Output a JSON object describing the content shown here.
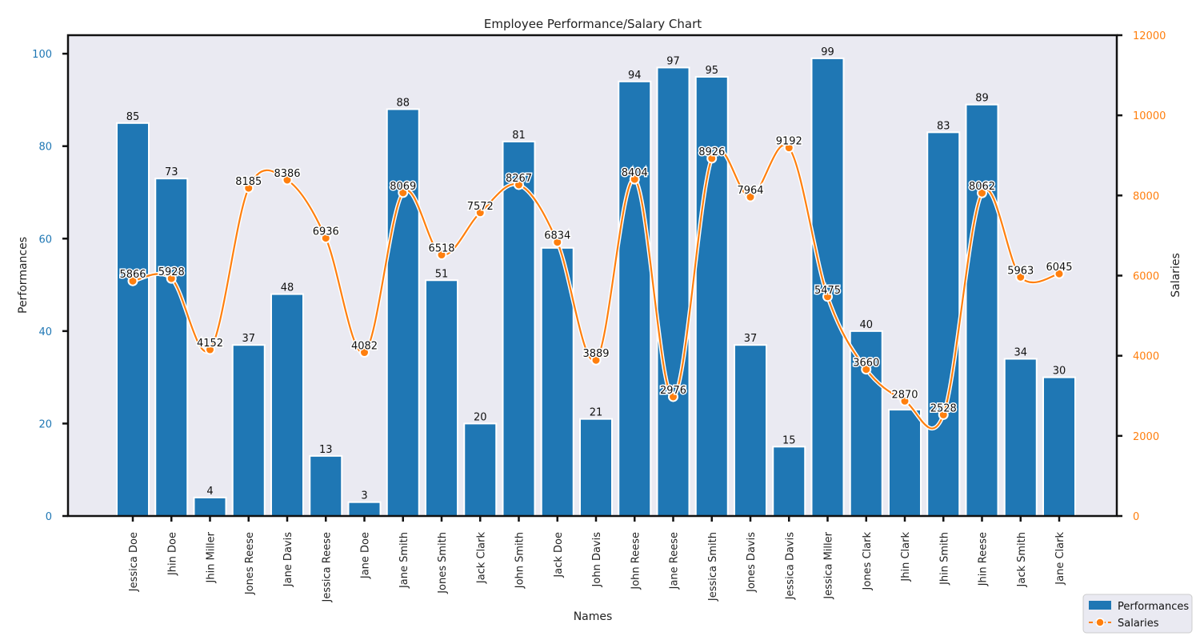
{
  "chart_data": {
    "type": "bar",
    "title": "Employee Performance/Salary Chart",
    "xlabel": "Names",
    "ylabel": "Performances",
    "y2label": "Salaries",
    "ylim": [
      0,
      104
    ],
    "y2lim": [
      0,
      12000
    ],
    "yticks": [
      0,
      20,
      40,
      60,
      80,
      100
    ],
    "y2ticks": [
      0,
      2000,
      4000,
      6000,
      8000,
      10000,
      12000
    ],
    "categories": [
      "Jessica Doe",
      "Jhin Doe",
      "Jhin Miller",
      "Jones Reese",
      "Jane Davis",
      "Jessica Reese",
      "Jane Doe",
      "Jane Smith",
      "Jones Smith",
      "Jack Clark",
      "John Smith",
      "Jack Doe",
      "John Davis",
      "John Reese",
      "Jane Reese",
      "Jessica Smith",
      "Jones Davis",
      "Jessica Davis",
      "Jessica Miller",
      "Jones Clark",
      "Jhin Clark",
      "Jhin Smith",
      "Jhin Reese",
      "Jack Smith",
      "Jane Clark"
    ],
    "series": [
      {
        "name": "Performances",
        "type": "bar",
        "axis": "left",
        "color": "#1f77b4",
        "values": [
          85,
          73,
          4,
          37,
          48,
          13,
          3,
          88,
          51,
          20,
          81,
          58,
          21,
          94,
          97,
          95,
          37,
          15,
          99,
          40,
          23,
          83,
          89,
          34,
          30
        ]
      },
      {
        "name": "Salaries",
        "type": "line",
        "axis": "right",
        "color": "#ff7f0e",
        "values": [
          5866,
          5928,
          4152,
          8185,
          8386,
          6936,
          4082,
          8069,
          6518,
          7572,
          8267,
          6834,
          3889,
          8404,
          2976,
          8926,
          7964,
          9192,
          5475,
          3660,
          2870,
          2528,
          8062,
          5963,
          6045
        ]
      }
    ],
    "bar_labels": [
      "85",
      "73",
      "4",
      "37",
      "48",
      "13",
      "3",
      "88",
      "51",
      "20",
      "81",
      "",
      "21",
      "94",
      "97",
      "95",
      "37",
      "15",
      "99",
      "40",
      "",
      "83",
      "89",
      "34",
      "30"
    ],
    "legend": {
      "position": "bottom-right",
      "entries": [
        "Performances",
        "Salaries"
      ]
    },
    "background": "#eaeaf2",
    "grid": false
  }
}
